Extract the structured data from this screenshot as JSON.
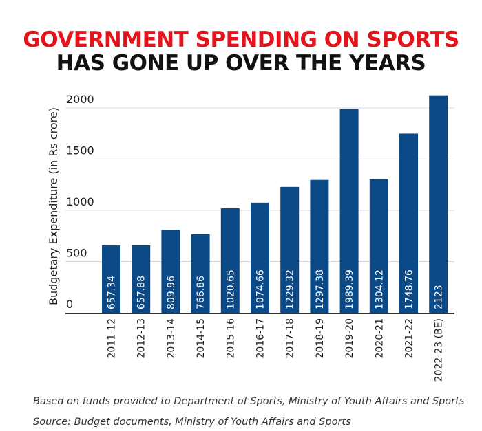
{
  "chart_data": {
    "type": "bar",
    "title_line1": "GOVERNMENT SPENDING ON SPORTS",
    "title_line2": "HAS GONE UP OVER THE YEARS",
    "ylabel": "Budgetary Expenditure (in Rs crore)",
    "xlabel": "",
    "ylim": [
      0,
      2000
    ],
    "yticks": [
      0,
      500,
      1000,
      1500,
      2000
    ],
    "grid": true,
    "categories": [
      "2011-12",
      "2012-13",
      "2013-14",
      "2014-15",
      "2015-16",
      "2016-17",
      "2017-18",
      "2018-19",
      "2019-20",
      "2020-21",
      "2021-22",
      "2022-23 (BE)"
    ],
    "values": [
      657.34,
      657.88,
      809.96,
      766.86,
      1020.65,
      1074.66,
      1229.32,
      1297.38,
      1989.39,
      1304.12,
      1748.76,
      2123
    ],
    "labels": [
      "657.34",
      "657.88",
      "809.96",
      "766.86",
      "1020.65",
      "1074.66",
      "1229.32",
      "1297.38",
      "1989.39",
      "1304.12",
      "1748.76",
      "2123"
    ],
    "bar_color": "#0c4a87",
    "title_color": "#e3141b"
  },
  "notes": {
    "line1": "Based on funds provided to Department of Sports, Ministry of Youth Affairs and Sports",
    "line2": "Source: Budget documents, Ministry of Youth Affairs and Sports"
  }
}
